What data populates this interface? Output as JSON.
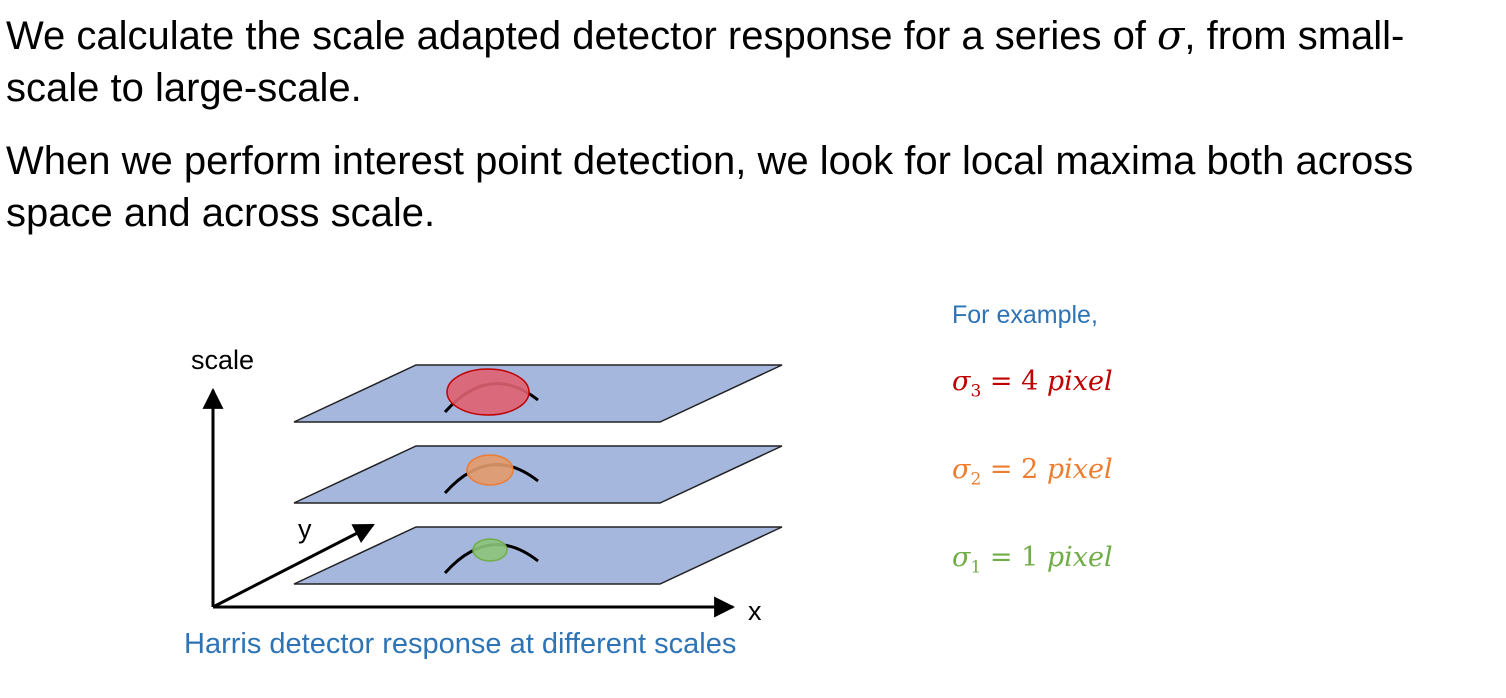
{
  "paragraphs": {
    "p1_before": "We calculate the scale adapted detector response for a series of ",
    "p1_symbol": "σ",
    "p1_after": ", from small-scale to large-scale.",
    "p2": "When we perform interest point detection, we look for local maxima both across space and across scale."
  },
  "diagram": {
    "axis_scale_label": "scale",
    "axis_y_label": "y",
    "axis_x_label": "x",
    "caption": "Harris detector response at different scales",
    "plane_color": "#a6b7de",
    "layers": [
      {
        "sigma_sub": "3",
        "value": "4",
        "unit": "pixel",
        "color": "#c00000",
        "blob_color": "#e06070"
      },
      {
        "sigma_sub": "2",
        "value": "2",
        "unit": "pixel",
        "color": "#ed7d31",
        "blob_color": "#e29a6b"
      },
      {
        "sigma_sub": "1",
        "value": "1",
        "unit": "pixel",
        "color": "#70ad47",
        "blob_color": "#8cc47a"
      }
    ]
  },
  "example": {
    "label": "For example,",
    "sigma_symbol": "σ",
    "equals": "="
  }
}
